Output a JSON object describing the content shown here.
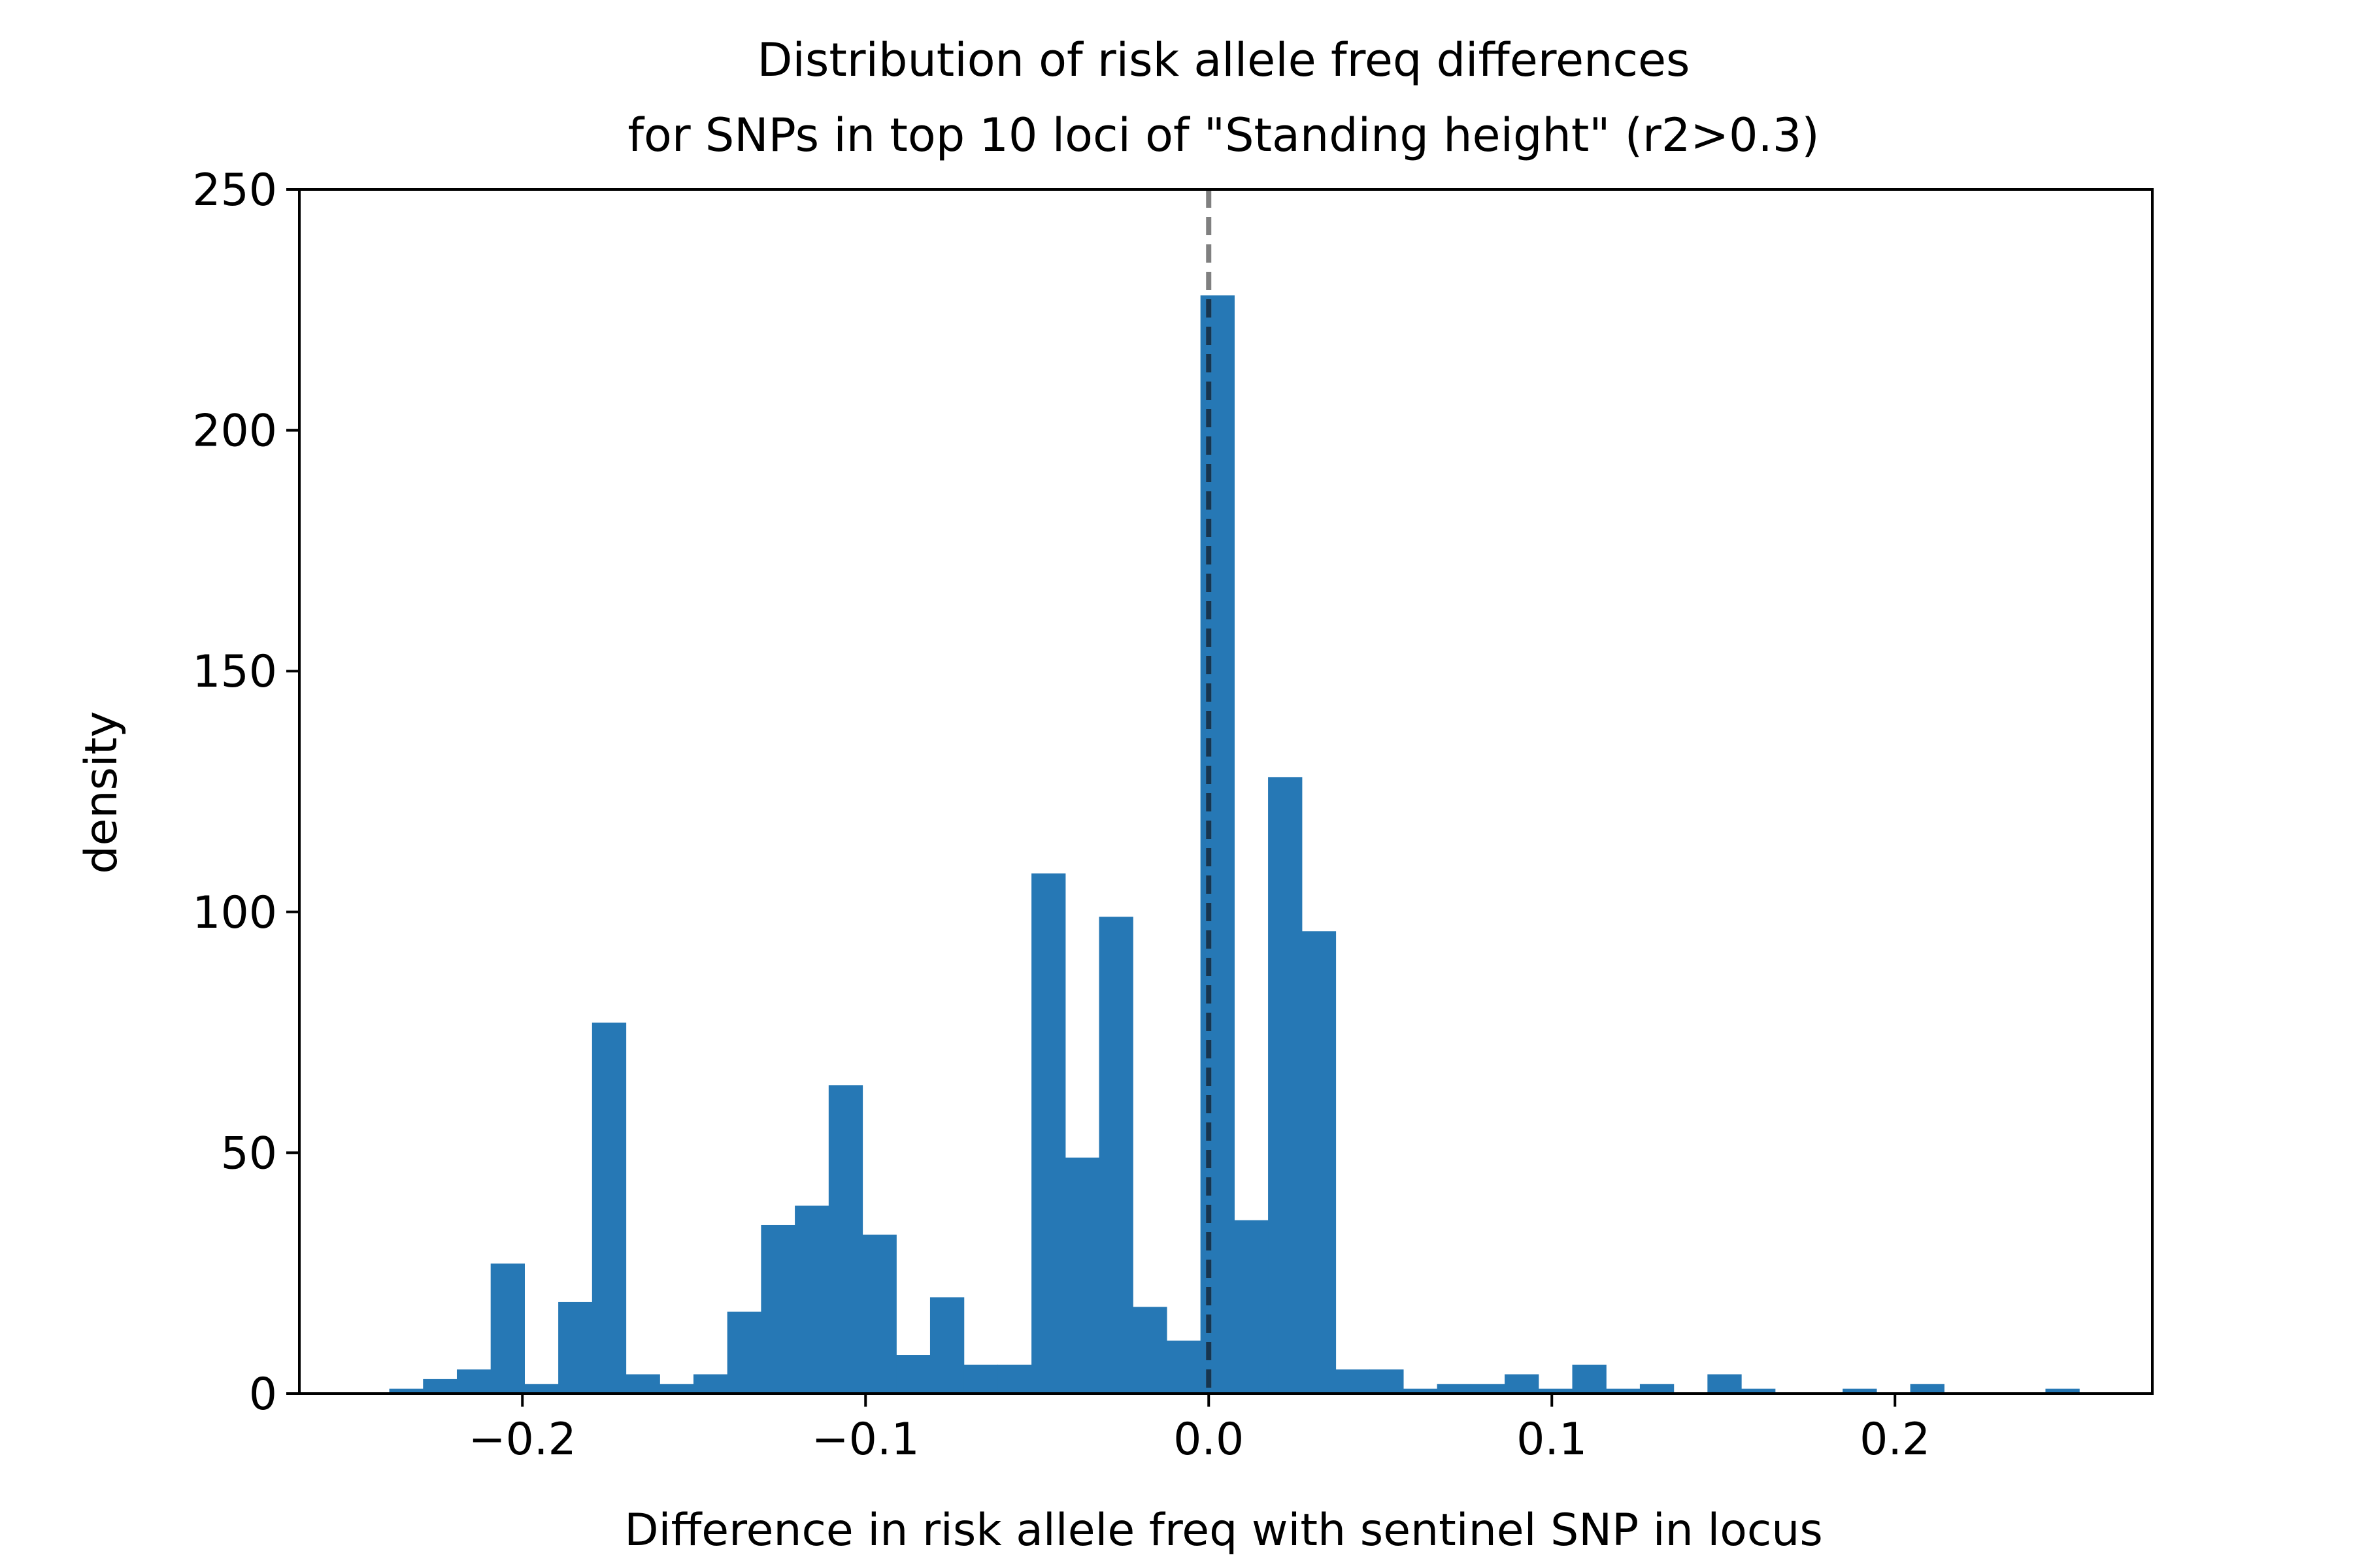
{
  "chart_data": {
    "type": "bar",
    "title": [
      "Distribution of risk allele freq differences",
      "for SNPs in top 10 loci of \"Standing height\" (r2>0.3)"
    ],
    "xlabel": "Difference in risk allele freq with sentinel SNP in locus",
    "ylabel": "density",
    "xlim": [
      -0.265,
      0.275
    ],
    "ylim": [
      0,
      250
    ],
    "xticks": [
      -0.2,
      -0.1,
      0.0,
      0.1,
      0.2
    ],
    "xtick_labels": [
      "−0.2",
      "−0.1",
      "0.0",
      "0.1",
      "0.2"
    ],
    "yticks": [
      0,
      50,
      100,
      150,
      200,
      250
    ],
    "ytick_labels": [
      "0",
      "50",
      "100",
      "150",
      "200",
      "250"
    ],
    "bin_start": -0.2388,
    "bin_width": 0.00985,
    "values": [
      1,
      3,
      5,
      27,
      2,
      19,
      77,
      4,
      2,
      4,
      17,
      35,
      39,
      64,
      33,
      8,
      20,
      6,
      6,
      108,
      49,
      99,
      18,
      11,
      228,
      36,
      128,
      96,
      5,
      5,
      1,
      2,
      2,
      4,
      1,
      6,
      1,
      2,
      0,
      4,
      1,
      0,
      0,
      1,
      0,
      2,
      0,
      0,
      0,
      1
    ],
    "reference_line": {
      "x": 0.0
    },
    "grid": false,
    "legend": "none",
    "colors": {
      "bar": "#2678b5",
      "reference_line": "#808080",
      "reference_line_overlay": "#16354f"
    }
  }
}
